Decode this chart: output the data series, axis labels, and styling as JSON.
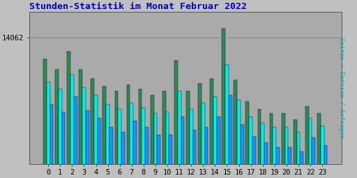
{
  "title": "Stunden-Statistik im Monat Februar 2022",
  "ylabel": "Seiten / Dateien / Anfragen",
  "hours": [
    0,
    1,
    2,
    3,
    4,
    5,
    6,
    7,
    8,
    9,
    10,
    11,
    12,
    13,
    14,
    15,
    16,
    17,
    18,
    19,
    20,
    21,
    22,
    23
  ],
  "anfragen": [
    13780,
    13640,
    13880,
    13640,
    13520,
    13420,
    13360,
    13440,
    13380,
    13300,
    13360,
    13760,
    13360,
    13460,
    13520,
    14180,
    13500,
    13220,
    13120,
    13060,
    13060,
    12980,
    13160,
    13060
  ],
  "seiten": [
    13480,
    13380,
    13580,
    13400,
    13300,
    13180,
    13120,
    13200,
    13140,
    13060,
    13080,
    13360,
    13120,
    13200,
    13280,
    13700,
    13240,
    13020,
    12940,
    12880,
    12880,
    12820,
    13000,
    12900
  ],
  "dateien": [
    13180,
    13080,
    13280,
    13100,
    13000,
    12880,
    12820,
    12960,
    12880,
    12780,
    12780,
    13020,
    12840,
    12880,
    13020,
    13300,
    12920,
    12760,
    12680,
    12620,
    12620,
    12560,
    12740,
    12640
  ],
  "ytick_label": "14062",
  "ytick_value": 14062,
  "ymin": 12400,
  "ymax": 14400,
  "bar_width": 0.28,
  "anfragen_color": "#2e8b57",
  "seiten_color": "#00eeee",
  "dateien_color": "#1e90ff",
  "bg_color": "#c0c0c0",
  "plot_bg": "#aaaaaa",
  "title_color": "#0000cc",
  "ylabel_color": "#00bbbb",
  "border_color": "#000000",
  "title_fontsize": 9.5,
  "tick_fontsize": 7.5
}
